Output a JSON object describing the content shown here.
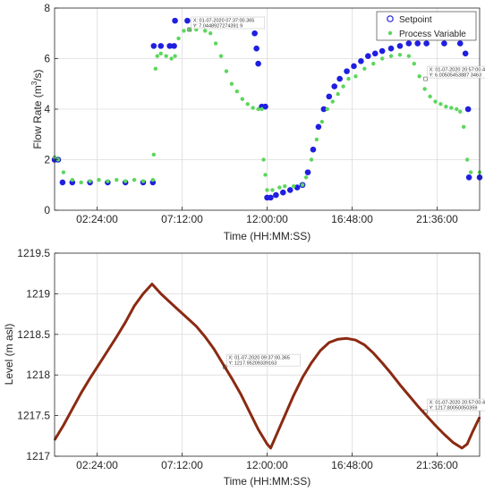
{
  "chart_data": [
    {
      "type": "scatter",
      "xlabel": "Time (HH:MM:SS)",
      "ylabel": "Flow Rate (m³/s)",
      "ylabel_parts": {
        "pre": "Flow Rate (m",
        "sup": "3",
        "post": "/s)"
      },
      "xlim": [
        0,
        24
      ],
      "ylim": [
        0,
        8
      ],
      "x_tick_values": [
        2.4,
        7.2,
        12.0,
        16.8,
        21.6
      ],
      "x_tick_labels": [
        "02:24:00",
        "07:12:00",
        "12:00:00",
        "16:48:00",
        "21:36:00"
      ],
      "y_tick_values": [
        0,
        2,
        4,
        6,
        8
      ],
      "y_tick_labels": [
        "0",
        "2",
        "4",
        "6",
        "8"
      ],
      "grid": true,
      "legend_position": "top-right",
      "series": [
        {
          "name": "Setpoint",
          "color": "#1f1fe0",
          "marker": "circle",
          "points": [
            [
              0.0,
              2.0
            ],
            [
              0.2,
              2.0
            ],
            [
              0.45,
              1.1
            ],
            [
              1.0,
              1.1
            ],
            [
              2.0,
              1.1
            ],
            [
              3.0,
              1.1
            ],
            [
              4.0,
              1.1
            ],
            [
              5.0,
              1.1
            ],
            [
              5.55,
              1.1
            ],
            [
              5.6,
              6.5
            ],
            [
              6.0,
              6.5
            ],
            [
              6.5,
              6.5
            ],
            [
              6.75,
              6.5
            ],
            [
              6.8,
              7.5
            ],
            [
              7.5,
              7.5
            ],
            [
              8.5,
              7.5
            ],
            [
              9.5,
              7.5
            ],
            [
              10.5,
              7.5
            ],
            [
              11.0,
              7.5
            ],
            [
              11.2,
              7.4
            ],
            [
              11.3,
              7.0
            ],
            [
              11.4,
              6.4
            ],
            [
              11.5,
              5.8
            ],
            [
              11.7,
              4.1
            ],
            [
              11.9,
              4.1
            ],
            [
              12.0,
              0.5
            ],
            [
              12.2,
              0.5
            ],
            [
              12.5,
              0.6
            ],
            [
              12.9,
              0.7
            ],
            [
              13.3,
              0.8
            ],
            [
              13.7,
              0.9
            ],
            [
              14.0,
              1.0
            ],
            [
              14.3,
              1.5
            ],
            [
              14.6,
              2.4
            ],
            [
              14.9,
              3.3
            ],
            [
              15.2,
              4.0
            ],
            [
              15.5,
              4.5
            ],
            [
              15.8,
              4.9
            ],
            [
              16.1,
              5.2
            ],
            [
              16.5,
              5.5
            ],
            [
              16.9,
              5.7
            ],
            [
              17.3,
              5.9
            ],
            [
              17.7,
              6.1
            ],
            [
              18.1,
              6.2
            ],
            [
              18.5,
              6.3
            ],
            [
              19.0,
              6.4
            ],
            [
              19.5,
              6.5
            ],
            [
              20.0,
              6.6
            ],
            [
              20.5,
              6.6
            ],
            [
              21.0,
              6.6
            ],
            [
              22.0,
              6.6
            ],
            [
              22.9,
              6.6
            ],
            [
              23.2,
              6.2
            ],
            [
              23.35,
              4.0
            ],
            [
              23.4,
              1.3
            ],
            [
              24.0,
              1.3
            ]
          ]
        },
        {
          "name": "Process Variable",
          "color": "#5cd65c",
          "marker": "dot",
          "points": [
            [
              0.0,
              2.1
            ],
            [
              0.2,
              2.0
            ],
            [
              0.5,
              1.5
            ],
            [
              1.0,
              1.2
            ],
            [
              1.5,
              1.1
            ],
            [
              2.0,
              1.15
            ],
            [
              2.5,
              1.2
            ],
            [
              3.0,
              1.15
            ],
            [
              3.5,
              1.2
            ],
            [
              4.0,
              1.15
            ],
            [
              4.5,
              1.2
            ],
            [
              5.0,
              1.15
            ],
            [
              5.55,
              1.2
            ],
            [
              5.6,
              2.2
            ],
            [
              5.7,
              5.6
            ],
            [
              5.8,
              6.1
            ],
            [
              6.0,
              6.2
            ],
            [
              6.3,
              6.1
            ],
            [
              6.6,
              6.0
            ],
            [
              6.8,
              6.1
            ],
            [
              7.0,
              6.8
            ],
            [
              7.3,
              7.1
            ],
            [
              7.6,
              7.15
            ],
            [
              8.0,
              7.15
            ],
            [
              8.5,
              7.1
            ],
            [
              8.8,
              7.0
            ],
            [
              9.1,
              6.6
            ],
            [
              9.4,
              6.1
            ],
            [
              9.7,
              5.5
            ],
            [
              10.0,
              5.0
            ],
            [
              10.3,
              4.7
            ],
            [
              10.6,
              4.4
            ],
            [
              10.9,
              4.2
            ],
            [
              11.2,
              4.05
            ],
            [
              11.5,
              4.0
            ],
            [
              11.7,
              4.0
            ],
            [
              11.8,
              2.0
            ],
            [
              11.9,
              1.4
            ],
            [
              12.0,
              0.8
            ],
            [
              12.3,
              0.8
            ],
            [
              12.7,
              0.9
            ],
            [
              13.0,
              0.95
            ],
            [
              13.5,
              0.95
            ],
            [
              14.0,
              1.0
            ],
            [
              14.2,
              1.3
            ],
            [
              14.5,
              2.0
            ],
            [
              14.8,
              2.8
            ],
            [
              15.1,
              3.5
            ],
            [
              15.4,
              4.0
            ],
            [
              15.7,
              4.3
            ],
            [
              16.0,
              4.6
            ],
            [
              16.3,
              4.9
            ],
            [
              16.6,
              5.2
            ],
            [
              17.0,
              5.3
            ],
            [
              17.5,
              5.6
            ],
            [
              18.0,
              5.8
            ],
            [
              18.5,
              6.0
            ],
            [
              19.0,
              6.1
            ],
            [
              19.5,
              6.15
            ],
            [
              20.0,
              6.1
            ],
            [
              20.3,
              5.8
            ],
            [
              20.6,
              5.3
            ],
            [
              20.9,
              4.8
            ],
            [
              21.2,
              4.5
            ],
            [
              21.5,
              4.3
            ],
            [
              21.8,
              4.2
            ],
            [
              22.1,
              4.1
            ],
            [
              22.4,
              4.05
            ],
            [
              22.7,
              4.0
            ],
            [
              22.9,
              3.9
            ],
            [
              23.1,
              3.3
            ],
            [
              23.3,
              2.0
            ],
            [
              23.5,
              1.5
            ],
            [
              24.0,
              1.5
            ]
          ]
        }
      ],
      "datatips": [
        {
          "x": 7.62,
          "y": 7.15,
          "text_x": "X: 01-07-2020 07:37:00.365",
          "text_y": "Y: 7.0448927274391 9"
        },
        {
          "x": 20.95,
          "y": 5.2,
          "text_x": "X: 01-07-2020 20:57:00.424",
          "text_y": "Y: 6.00505453887 3463"
        }
      ]
    },
    {
      "type": "line",
      "xlabel": "Time (HH:MM:SS)",
      "ylabel": "Level (m asl)",
      "xlim": [
        0,
        24
      ],
      "ylim": [
        1217,
        1219.5
      ],
      "x_tick_values": [
        2.4,
        7.2,
        12.0,
        16.8,
        21.6
      ],
      "x_tick_labels": [
        "02:24:00",
        "07:12:00",
        "12:00:00",
        "16:48:00",
        "21:36:00"
      ],
      "y_tick_values": [
        1217,
        1217.5,
        1218,
        1218.5,
        1219,
        1219.5
      ],
      "y_tick_labels": [
        "1217",
        "1217.5",
        "1218",
        "1218.5",
        "1219",
        "1219.5"
      ],
      "grid": true,
      "series": [
        {
          "color": "#8b2a12",
          "points": [
            [
              0.0,
              1217.2
            ],
            [
              0.5,
              1217.38
            ],
            [
              1.0,
              1217.58
            ],
            [
              1.5,
              1217.78
            ],
            [
              2.0,
              1217.96
            ],
            [
              2.5,
              1218.13
            ],
            [
              3.0,
              1218.3
            ],
            [
              3.5,
              1218.47
            ],
            [
              4.0,
              1218.65
            ],
            [
              4.5,
              1218.85
            ],
            [
              5.0,
              1219.0
            ],
            [
              5.5,
              1219.12
            ],
            [
              6.0,
              1219.0
            ],
            [
              6.5,
              1218.9
            ],
            [
              7.0,
              1218.8
            ],
            [
              7.5,
              1218.7
            ],
            [
              8.0,
              1218.6
            ],
            [
              8.5,
              1218.47
            ],
            [
              9.0,
              1218.32
            ],
            [
              9.5,
              1218.14
            ],
            [
              10.0,
              1217.96
            ],
            [
              10.5,
              1217.77
            ],
            [
              11.0,
              1217.55
            ],
            [
              11.5,
              1217.33
            ],
            [
              12.0,
              1217.15
            ],
            [
              12.2,
              1217.1
            ],
            [
              12.5,
              1217.25
            ],
            [
              13.0,
              1217.5
            ],
            [
              13.5,
              1217.75
            ],
            [
              14.0,
              1217.97
            ],
            [
              14.5,
              1218.15
            ],
            [
              15.0,
              1218.3
            ],
            [
              15.5,
              1218.4
            ],
            [
              16.0,
              1218.44
            ],
            [
              16.5,
              1218.45
            ],
            [
              17.0,
              1218.43
            ],
            [
              17.5,
              1218.37
            ],
            [
              18.0,
              1218.27
            ],
            [
              18.5,
              1218.15
            ],
            [
              19.0,
              1218.02
            ],
            [
              19.5,
              1217.88
            ],
            [
              20.0,
              1217.75
            ],
            [
              20.5,
              1217.62
            ],
            [
              21.0,
              1217.5
            ],
            [
              21.5,
              1217.38
            ],
            [
              22.0,
              1217.27
            ],
            [
              22.5,
              1217.17
            ],
            [
              23.0,
              1217.1
            ],
            [
              23.3,
              1217.15
            ],
            [
              23.6,
              1217.3
            ],
            [
              24.0,
              1217.48
            ]
          ]
        }
      ],
      "datatips": [
        {
          "x": 9.62,
          "y": 1218.1,
          "text_x": "X: 01-07-2020 09:37:00.365",
          "text_y": "Y: 1217.95209339163"
        },
        {
          "x": 20.95,
          "y": 1217.55,
          "text_x": "X: 01-07-2020 20:57:00.424",
          "text_y": "Y: 1217.80050050359"
        }
      ]
    }
  ]
}
